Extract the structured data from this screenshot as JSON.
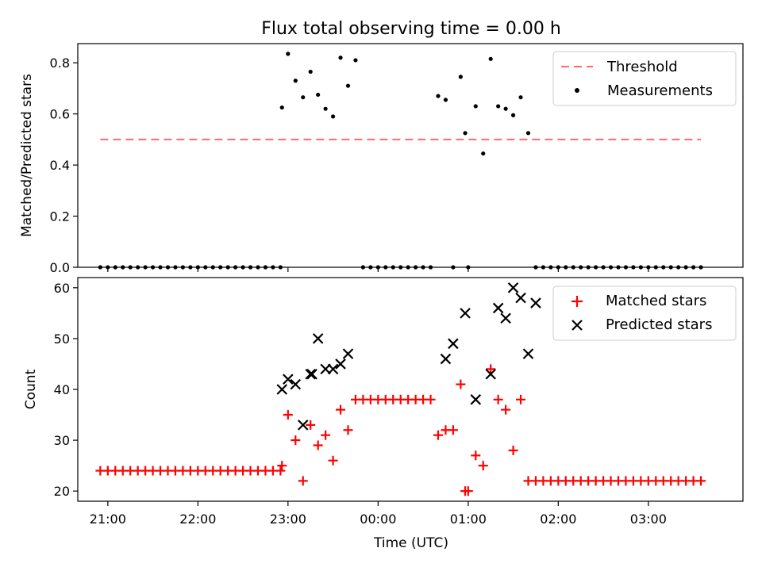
{
  "chart_data": [
    {
      "type": "scatter",
      "title": "Flux total observing time = 0.00 h",
      "xlabel": "",
      "ylabel": "Matched/Predicted stars",
      "ylim": [
        0,
        0.875
      ],
      "xlim": [
        "20:40",
        "04:03"
      ],
      "yticks": [
        "0.0",
        "0.2",
        "0.4",
        "0.6",
        "0.8"
      ],
      "legend_position": "top-right",
      "threshold": {
        "name": "Threshold",
        "value": 0.5,
        "x": [
          "20:55",
          "03:35"
        ],
        "color": "#ff6b6b"
      },
      "series": [
        {
          "name": "Measurements",
          "color": "#000000",
          "x": [
            "20:55",
            "21:00",
            "21:05",
            "21:10",
            "21:15",
            "21:20",
            "21:25",
            "21:30",
            "21:35",
            "21:40",
            "21:45",
            "21:50",
            "21:55",
            "22:00",
            "22:05",
            "22:10",
            "22:15",
            "22:20",
            "22:25",
            "22:30",
            "22:35",
            "22:40",
            "22:45",
            "22:50",
            "22:55",
            "22:56",
            "23:00",
            "23:05",
            "23:10",
            "23:15",
            "23:20",
            "23:25",
            "23:30",
            "23:35",
            "23:40",
            "23:45",
            "23:50",
            "23:55",
            "00:00",
            "00:05",
            "00:10",
            "00:15",
            "00:20",
            "00:25",
            "00:30",
            "00:35",
            "00:40",
            "00:45",
            "00:50",
            "00:55",
            "00:58",
            "01:00",
            "01:05",
            "01:10",
            "01:15",
            "01:20",
            "01:25",
            "01:30",
            "01:35",
            "01:40",
            "01:45",
            "01:50",
            "01:55",
            "02:00",
            "02:05",
            "02:10",
            "02:15",
            "02:20",
            "02:25",
            "02:30",
            "02:35",
            "02:40",
            "02:45",
            "02:50",
            "02:55",
            "03:00",
            "03:05",
            "03:10",
            "03:15",
            "03:20",
            "03:25",
            "03:30",
            "03:35"
          ],
          "y": [
            0,
            0,
            0,
            0,
            0,
            0,
            0,
            0,
            0,
            0,
            0,
            0,
            0,
            0,
            0,
            0,
            0,
            0,
            0,
            0,
            0,
            0,
            0,
            0,
            0,
            0.625,
            0.835,
            0.73,
            0.665,
            0.765,
            0.675,
            0.62,
            0.59,
            0.82,
            0.71,
            0.81,
            0,
            0,
            0,
            0,
            0,
            0,
            0,
            0,
            0,
            0,
            0.67,
            0.655,
            0,
            0.745,
            0.525,
            0,
            0.63,
            0.445,
            0.815,
            0.63,
            0.62,
            0.595,
            0.665,
            0.525,
            0,
            0,
            0,
            0,
            0,
            0,
            0,
            0,
            0,
            0,
            0,
            0,
            0,
            0,
            0,
            0,
            0,
            0,
            0,
            0,
            0,
            0,
            0
          ]
        }
      ]
    },
    {
      "type": "scatter",
      "title": "",
      "xlabel": "Time (UTC)",
      "ylabel": "Count",
      "ylim": [
        18,
        62
      ],
      "xlim": [
        "20:40",
        "04:03"
      ],
      "xticks": [
        "21:00",
        "22:00",
        "23:00",
        "00:00",
        "01:00",
        "02:00",
        "03:00"
      ],
      "yticks": [
        "20",
        "30",
        "40",
        "50",
        "60"
      ],
      "legend_position": "top-right",
      "series": [
        {
          "name": "Matched stars",
          "marker": "plus",
          "color": "#ff0000",
          "x": [
            "20:55",
            "21:00",
            "21:05",
            "21:10",
            "21:15",
            "21:20",
            "21:25",
            "21:30",
            "21:35",
            "21:40",
            "21:45",
            "21:50",
            "21:55",
            "22:00",
            "22:05",
            "22:10",
            "22:15",
            "22:20",
            "22:25",
            "22:30",
            "22:35",
            "22:40",
            "22:45",
            "22:50",
            "22:55",
            "22:56",
            "23:00",
            "23:05",
            "23:10",
            "23:15",
            "23:20",
            "23:25",
            "23:30",
            "23:35",
            "23:40",
            "23:45",
            "23:50",
            "23:55",
            "00:00",
            "00:05",
            "00:10",
            "00:15",
            "00:20",
            "00:25",
            "00:30",
            "00:35",
            "00:40",
            "00:45",
            "00:50",
            "00:55",
            "00:58",
            "01:00",
            "01:05",
            "01:10",
            "01:15",
            "01:20",
            "01:25",
            "01:30",
            "01:35",
            "01:40",
            "01:45",
            "01:50",
            "01:55",
            "02:00",
            "02:05",
            "02:10",
            "02:15",
            "02:20",
            "02:25",
            "02:30",
            "02:35",
            "02:40",
            "02:45",
            "02:50",
            "02:55",
            "03:00",
            "03:05",
            "03:10",
            "03:15",
            "03:20",
            "03:25",
            "03:30",
            "03:35"
          ],
          "y": [
            24,
            24,
            24,
            24,
            24,
            24,
            24,
            24,
            24,
            24,
            24,
            24,
            24,
            24,
            24,
            24,
            24,
            24,
            24,
            24,
            24,
            24,
            24,
            24,
            24,
            25,
            35,
            30,
            22,
            33,
            29,
            31,
            26,
            36,
            32,
            38,
            38,
            38,
            38,
            38,
            38,
            38,
            38,
            38,
            38,
            38,
            31,
            32,
            32,
            41,
            20,
            20,
            27,
            25,
            44,
            38,
            36,
            28,
            38,
            22,
            22,
            22,
            22,
            22,
            22,
            22,
            22,
            22,
            22,
            22,
            22,
            22,
            22,
            22,
            22,
            22,
            22,
            22,
            22,
            22,
            22,
            22,
            22
          ]
        },
        {
          "name": "Predicted stars",
          "marker": "x",
          "color": "#000000",
          "x": [
            "22:56",
            "23:00",
            "23:05",
            "23:10",
            "23:15",
            "23:16",
            "23:20",
            "23:25",
            "23:30",
            "23:35",
            "23:40",
            "00:45",
            "00:50",
            "00:58",
            "01:05",
            "01:15",
            "01:20",
            "01:25",
            "01:30",
            "01:35",
            "01:40",
            "01:45"
          ],
          "y": [
            40,
            42,
            41,
            33,
            43,
            43,
            50,
            44,
            44,
            45,
            47,
            46,
            49,
            55,
            38,
            43,
            56,
            54,
            60,
            58,
            47,
            57
          ]
        }
      ]
    }
  ]
}
